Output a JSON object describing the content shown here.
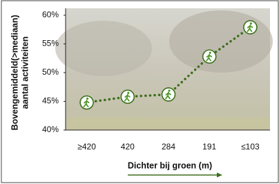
{
  "chart_data": {
    "type": "line",
    "ylabel": [
      "Bovengemiddeld(>mediaan)",
      "aantal activiteiten"
    ],
    "xlabel": "Dichter bij groen (m)",
    "categories": [
      "≥420",
      "420",
      "284",
      "191",
      "≤103"
    ],
    "values": [
      44.8,
      45.8,
      46.2,
      52.8,
      57.9
    ],
    "color": "#3d6e1e",
    "ylim": [
      40,
      60
    ],
    "yticks": [
      {
        "value": 40,
        "label": "40%"
      },
      {
        "value": 45,
        "label": "45%"
      },
      {
        "value": 50,
        "label": "50%"
      },
      {
        "value": 55,
        "label": "55%"
      },
      {
        "value": 60,
        "label": "60%"
      }
    ]
  }
}
